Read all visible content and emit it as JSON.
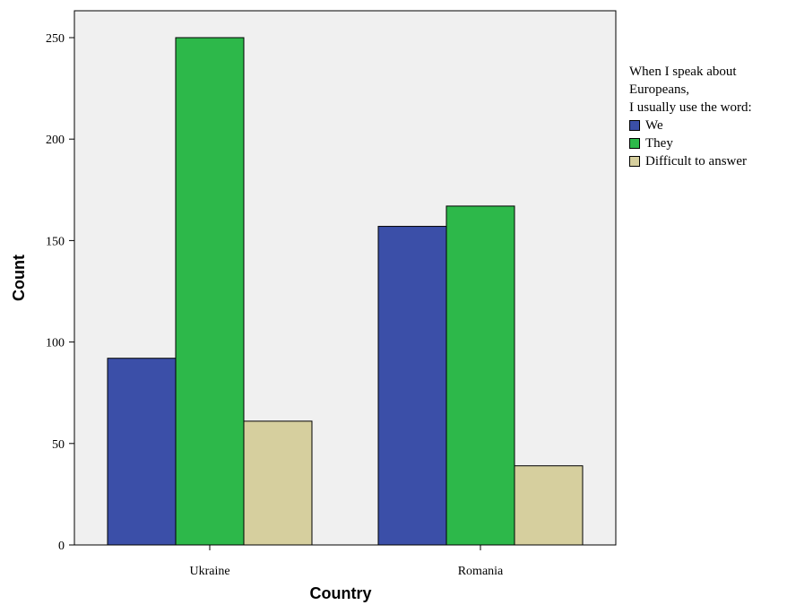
{
  "chart_data": {
    "type": "bar",
    "categories": [
      "Ukraine",
      "Romania"
    ],
    "series": [
      {
        "name": "We",
        "values": [
          92,
          157
        ],
        "color": "#3b4fa8"
      },
      {
        "name": "They",
        "values": [
          250,
          167
        ],
        "color": "#2db84a"
      },
      {
        "name": "Difficult to answer",
        "values": [
          61,
          39
        ],
        "color": "#d6cf9e"
      }
    ],
    "xlabel": "Country",
    "ylabel": "Count",
    "ylim": [
      0,
      250
    ],
    "yticks": [
      0,
      50,
      100,
      150,
      200,
      250
    ],
    "legend": {
      "title_lines": [
        "When I speak about",
        "Europeans,",
        "I usually use the word:"
      ],
      "position": "right"
    },
    "plot_background": "#f0f0f0",
    "grid": false
  }
}
